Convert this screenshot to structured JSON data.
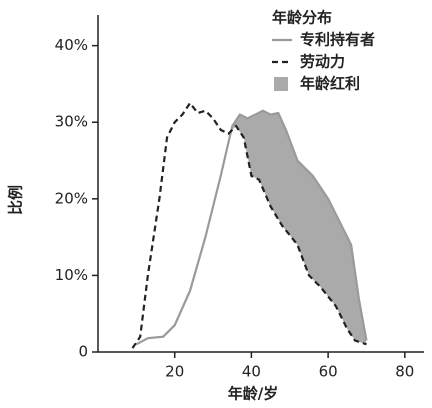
{
  "chart_data": {
    "type": "line",
    "xlabel": "年龄/岁",
    "ylabel": "比例",
    "legend_title": "年龄分布",
    "xlim": [
      0,
      85
    ],
    "xticks": [
      20,
      40,
      60,
      80
    ],
    "ylim": [
      0,
      44
    ],
    "yticks": [
      0,
      {
        "value": 10,
        "label": "10%"
      },
      {
        "value": 20,
        "label": "20%"
      },
      {
        "value": 30,
        "label": "30%"
      },
      {
        "value": 40,
        "label": "40%"
      }
    ],
    "series": [
      {
        "name": "专利持有者",
        "color": "#9a9a9a",
        "style": "solid",
        "x": [
          10,
          13,
          17,
          20,
          24,
          28,
          32,
          35,
          37,
          39,
          41,
          43,
          45,
          47,
          49,
          52,
          56,
          60,
          64,
          66,
          68,
          70
        ],
        "y": [
          1,
          1.8,
          2,
          3.5,
          8,
          15,
          23,
          29.5,
          31,
          30.5,
          31,
          31.5,
          31,
          31.2,
          29,
          25,
          23,
          20,
          16,
          14,
          7,
          1.5
        ]
      },
      {
        "name": "劳动力",
        "color": "#222222",
        "style": "dashed",
        "x": [
          9,
          11,
          13,
          16,
          18,
          20,
          22,
          24,
          26,
          28,
          30,
          32,
          34,
          36,
          38,
          40,
          42,
          45,
          48,
          52,
          55,
          58,
          62,
          65,
          67,
          70
        ],
        "y": [
          0.5,
          2,
          10,
          20,
          28,
          30,
          31,
          32.5,
          31.2,
          31.5,
          30.5,
          29,
          28.5,
          29.5,
          28,
          23,
          22.5,
          19,
          16.5,
          14,
          10,
          8.5,
          6,
          3,
          1.5,
          1
        ]
      }
    ],
    "fill": {
      "name": "年龄红利",
      "color": "#aaaaaa"
    }
  }
}
